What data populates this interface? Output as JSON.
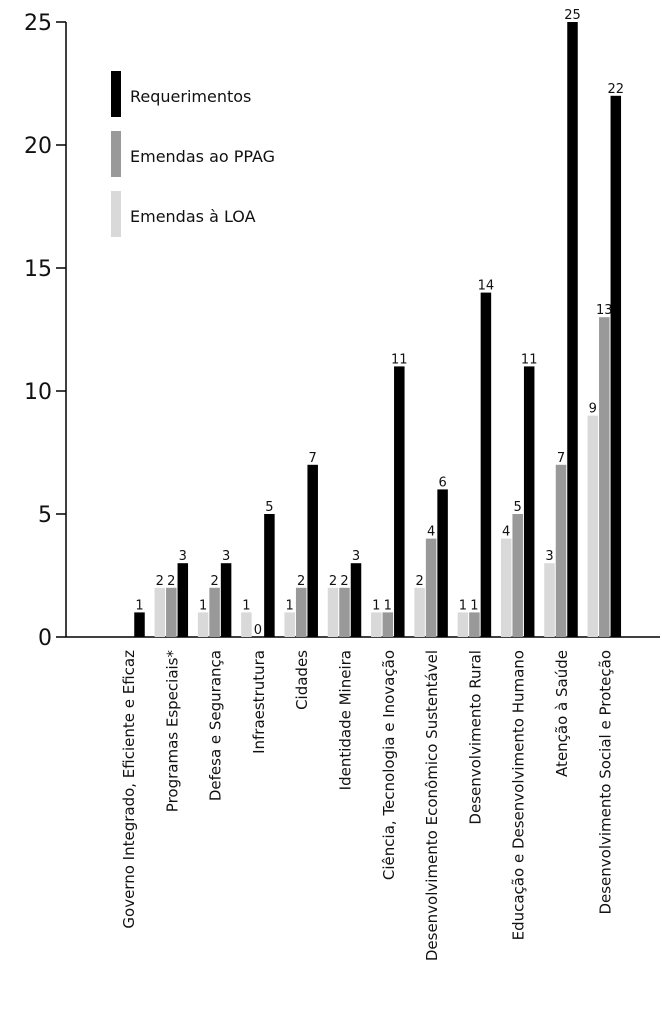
{
  "chart_data": {
    "type": "bar",
    "ylim": [
      0,
      25
    ],
    "yticks": [
      0,
      5,
      10,
      15,
      20,
      25
    ],
    "categories": [
      "Governo Integrado, Eficiente e Eficaz",
      "Programas Especiais*",
      "Defesa e Segurança",
      "Infraestrutura",
      "Cidades",
      "Identidade Mineira",
      "Ciência, Tecnologia e Inovação",
      "Desenvolvimento Econômico Sustentável",
      "Desenvolvimento Rural",
      "Educação e Desenvolvimento Humano",
      "Atenção à Saúde",
      "Desenvolvimento Social e Proteção"
    ],
    "series": [
      {
        "name": "Emendas à LOA",
        "color": "#d9d9d9",
        "values": [
          null,
          2,
          1,
          1,
          1,
          2,
          1,
          2,
          1,
          4,
          3,
          9
        ]
      },
      {
        "name": "Emendas ao PPAG",
        "color": "#999999",
        "values": [
          null,
          2,
          2,
          0,
          2,
          2,
          1,
          4,
          1,
          5,
          7,
          13
        ]
      },
      {
        "name": "Requerimentos",
        "color": "#000000",
        "values": [
          1,
          3,
          3,
          5,
          7,
          3,
          11,
          6,
          14,
          11,
          25,
          22
        ]
      }
    ],
    "legend": {
      "position": "top-left",
      "order": [
        "Requerimentos",
        "Emendas ao PPAG",
        "Emendas à LOA"
      ]
    },
    "grid": false
  }
}
